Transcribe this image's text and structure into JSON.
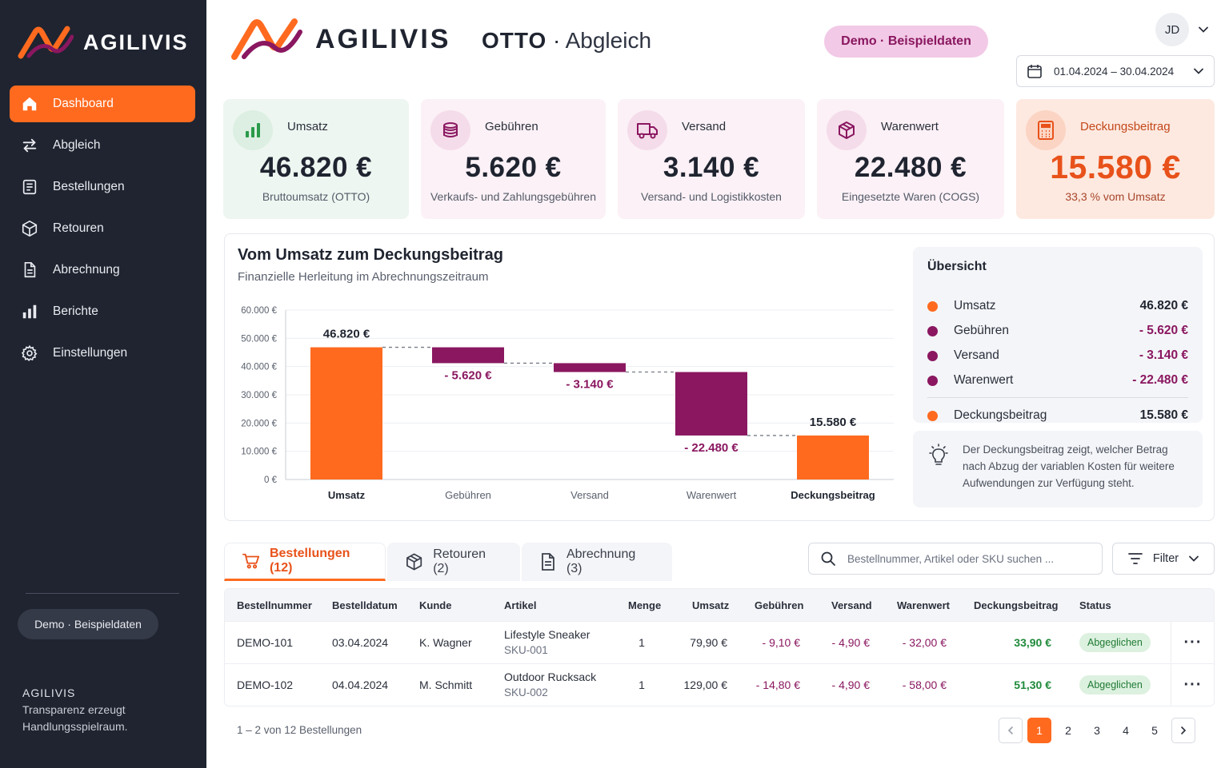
{
  "brand": {
    "name": "AGILIVIS",
    "tagline_line1": "Transparenz erzeugt",
    "tagline_line2": "Handlungsspielraum."
  },
  "colors": {
    "accent": "#ff6a1f",
    "deduction": "#8a1760",
    "sidebar_bg": "#1f2430",
    "positive": "#1f8a3a"
  },
  "sidebar": {
    "items": [
      {
        "label": "Dashboard",
        "icon": "home-icon",
        "active": true
      },
      {
        "label": "Abgleich",
        "icon": "arrows-swap-icon"
      },
      {
        "label": "Bestellungen",
        "icon": "list-document-icon"
      },
      {
        "label": "Retouren",
        "icon": "box-icon"
      },
      {
        "label": "Abrechnung",
        "icon": "document-icon"
      },
      {
        "label": "Berichte",
        "icon": "bar-chart-icon"
      },
      {
        "label": "Einstellungen",
        "icon": "gear-icon"
      }
    ],
    "demo_label": "Demo · Beispieldaten"
  },
  "header": {
    "channel": "OTTO",
    "separator": "·",
    "section": "Abgleich",
    "demo_pill": "Demo · Beispieldaten",
    "avatar_initials": "JD",
    "date_range": "01.04.2024 – 30.04.2024"
  },
  "kpis": [
    {
      "label": "Umsatz",
      "value": "46.820 €",
      "desc": "Bruttoumsatz (OTTO)",
      "icon": "bar-chart-icon"
    },
    {
      "label": "Gebühren",
      "value": "5.620 €",
      "desc": "Verkaufs- und Zahlungsgebühren",
      "icon": "coins-icon"
    },
    {
      "label": "Versand",
      "value": "3.140 €",
      "desc": "Versand- und Logistikkosten",
      "icon": "truck-icon"
    },
    {
      "label": "Warenwert",
      "value": "22.480 €",
      "desc": "Eingesetzte Waren (COGS)",
      "icon": "package-icon"
    },
    {
      "label": "Deckungsbeitrag",
      "value": "15.580 €",
      "desc": "33,3 % vom Umsatz",
      "icon": "calculator-icon"
    }
  ],
  "chart": {
    "title": "Vom Umsatz zum Deckungsbeitrag",
    "subtitle": "Finanzielle Herleitung im Abrechnungszeitraum"
  },
  "chart_data": {
    "type": "bar",
    "subtype": "waterfall",
    "categories": [
      "Umsatz",
      "Gebühren",
      "Versand",
      "Warenwert",
      "Deckungsbeitrag"
    ],
    "values": [
      46820,
      -5620,
      -3140,
      -22480,
      15580
    ],
    "data_labels": [
      "46.820 €",
      "- 5.620 €",
      "- 3.140 €",
      "- 22.480 €",
      "15.580 €"
    ],
    "kinds": [
      "total",
      "delta",
      "delta",
      "delta",
      "total"
    ],
    "y_ticks": [
      0,
      10000,
      20000,
      30000,
      40000,
      50000,
      60000
    ],
    "y_tick_labels": [
      "0 €",
      "10.000 €",
      "20.000 €",
      "30.000 €",
      "40.000 €",
      "50.000 €",
      "60.000 €"
    ],
    "ylim": [
      0,
      60000
    ],
    "grid": true
  },
  "overview": {
    "title": "Übersicht",
    "rows": [
      {
        "name": "Umsatz",
        "amount": "46.820 €",
        "color": "#ff6a1f",
        "negative": false
      },
      {
        "name": "Gebühren",
        "amount": "- 5.620 €",
        "color": "#8a1760",
        "negative": true
      },
      {
        "name": "Versand",
        "amount": "- 3.140 €",
        "color": "#8a1760",
        "negative": true
      },
      {
        "name": "Warenwert",
        "amount": "- 22.480 €",
        "color": "#8a1760",
        "negative": true
      }
    ],
    "total": {
      "name": "Deckungsbeitrag",
      "amount": "15.580 €",
      "color": "#ff6a1f"
    }
  },
  "hint": {
    "text_line1": "Der Deckungsbeitrag zeigt, welcher Betrag",
    "text_line2": "nach Abzug der variablen Kosten für weitere",
    "text_line3": "Aufwendungen zur Verfügung steht."
  },
  "tabs": [
    {
      "label": "Bestellungen (12)",
      "icon": "cart-icon",
      "active": true
    },
    {
      "label": "Retouren (2)",
      "icon": "box-return-icon"
    },
    {
      "label": "Abrechnung (3)",
      "icon": "document-icon"
    }
  ],
  "search": {
    "placeholder": "Bestellnummer, Artikel oder SKU suchen ..."
  },
  "filter": {
    "label": "Filter"
  },
  "table": {
    "columns": [
      "Bestellnummer",
      "Bestelldatum",
      "Kunde",
      "Artikel",
      "Menge",
      "Umsatz",
      "Gebühren",
      "Versand",
      "Warenwert",
      "Deckungsbeitrag",
      "Status"
    ],
    "rows": [
      {
        "order": "DEMO-101",
        "date": "03.04.2024",
        "customer": "K. Wagner",
        "article": "Lifestyle Sneaker",
        "sku": "SKU-001",
        "qty": "1",
        "revenue": "79,90 €",
        "fees": "- 9,10 €",
        "shipping": "- 4,90 €",
        "goods": "- 32,00 €",
        "margin": "33,90 €",
        "status": "Abgeglichen"
      },
      {
        "order": "DEMO-102",
        "date": "04.04.2024",
        "customer": "M. Schmitt",
        "article": "Outdoor Rucksack",
        "sku": "SKU-002",
        "qty": "1",
        "revenue": "129,00 €",
        "fees": "- 14,80 €",
        "shipping": "- 4,90 €",
        "goods": "- 58,00 €",
        "margin": "51,30 €",
        "status": "Abgeglichen"
      }
    ],
    "footer": "1 – 2 von 12 Bestellungen"
  },
  "pagination": {
    "pages": [
      "1",
      "2",
      "3",
      "4",
      "5"
    ],
    "current": "1"
  }
}
